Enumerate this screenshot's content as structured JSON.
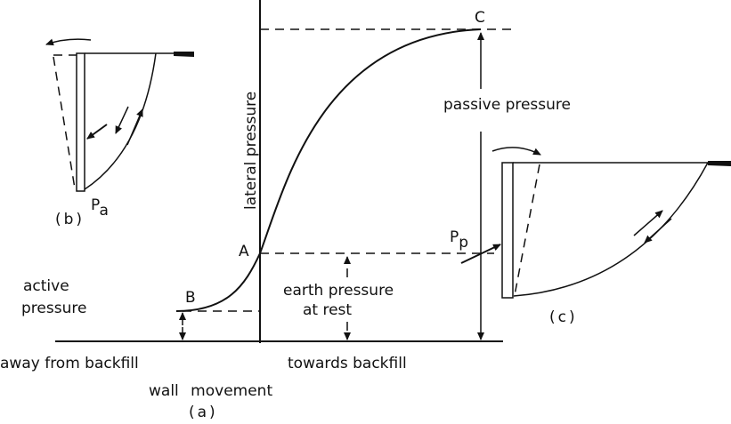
{
  "figure_a": {
    "point_a": "A",
    "point_b": "B",
    "point_c": "C",
    "y_axis_label": "lateral pressure",
    "passive_label": "passive pressure",
    "active_label_1": "active",
    "active_label_2": "pressure",
    "rest_label_1": "earth pressure",
    "rest_label_2": "at rest",
    "x_left_label": "away from backfill",
    "x_right_label": "towards backfill",
    "x_axis_label": "wall movement",
    "caption": "(a)"
  },
  "figure_b": {
    "force_label": "P",
    "force_sub": "a",
    "caption": "(b)"
  },
  "figure_c": {
    "force_label": "P",
    "force_sub": "p",
    "caption": "(c)"
  }
}
